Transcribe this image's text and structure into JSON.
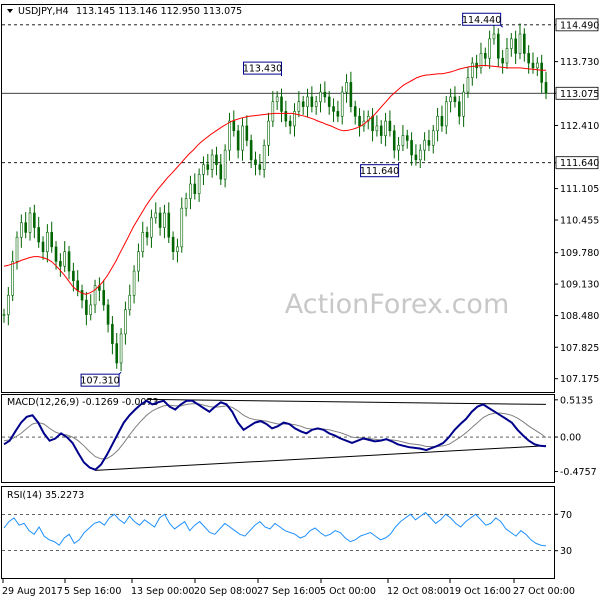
{
  "header": {
    "symbol_label": "USDJPY,H4",
    "ohlc_label": "113.145 113.146 112.950 113.075"
  },
  "watermark": "ActionForex.com",
  "colors": {
    "candle": "#006400",
    "moving_average": "#ff0000",
    "macd_line": "#00008b",
    "signal_line": "#808080",
    "rsi_line": "#1e90ff",
    "trendline": "#000000",
    "panel_border": "#000000",
    "watermark": "#c8c8c8"
  },
  "chart_data": [
    {
      "type": "candlestick",
      "panel": "price",
      "symbol": "USDJPY",
      "timeframe": "H4",
      "ylim": [
        106.9,
        114.9
      ],
      "y_ticks": [
        "114.490",
        "113.730",
        "113.075",
        "112.410",
        "111.640",
        "111.105",
        "110.455",
        "109.780",
        "109.130",
        "108.480",
        "107.825",
        "107.175"
      ],
      "horizontal_levels": [
        {
          "value": 114.49,
          "label": "114.490",
          "style": "dashed"
        },
        {
          "value": 113.075,
          "label": "113.075",
          "style": "solid"
        },
        {
          "value": 111.64,
          "label": "111.640",
          "style": "dashed"
        }
      ],
      "annotations": [
        {
          "label": "107.310",
          "value": 107.31
        },
        {
          "label": "113.430",
          "value": 113.43
        },
        {
          "label": "111.640",
          "value": 111.64
        },
        {
          "label": "114.440",
          "value": 114.44
        }
      ],
      "closes": [
        108.5,
        108.9,
        109.6,
        110.1,
        110.4,
        110.2,
        110.6,
        110.3,
        110.0,
        109.8,
        110.2,
        109.9,
        109.6,
        109.5,
        109.8,
        109.4,
        109.2,
        109.0,
        108.8,
        108.5,
        108.7,
        109.1,
        109.0,
        108.7,
        108.3,
        107.9,
        107.5,
        108.1,
        108.6,
        108.9,
        109.4,
        109.8,
        110.2,
        110.1,
        110.5,
        110.6,
        110.3,
        110.6,
        110.1,
        109.8,
        109.9,
        110.7,
        110.9,
        111.2,
        111.0,
        111.4,
        111.6,
        111.5,
        111.8,
        111.6,
        111.3,
        111.9,
        112.5,
        112.3,
        111.9,
        112.4,
        112.1,
        111.7,
        111.6,
        111.5,
        112.0,
        112.5,
        112.9,
        113.0,
        112.7,
        112.5,
        112.4,
        112.7,
        112.9,
        112.8,
        113.0,
        112.8,
        112.9,
        113.1,
        113.0,
        112.8,
        112.7,
        112.6,
        113.1,
        113.3,
        112.8,
        112.6,
        112.4,
        112.5,
        112.6,
        112.3,
        112.4,
        112.2,
        112.5,
        112.3,
        111.9,
        112.0,
        112.2,
        112.1,
        111.8,
        111.7,
        111.9,
        112.1,
        112.0,
        112.3,
        112.6,
        112.4,
        112.9,
        113.0,
        112.9,
        112.6,
        113.1,
        113.4,
        113.7,
        113.6,
        113.9,
        113.8,
        114.2,
        114.3,
        113.8,
        113.7,
        114.0,
        114.2,
        113.9,
        114.3,
        113.9,
        113.7,
        113.6,
        113.7,
        113.3,
        113.075
      ],
      "moving_average": [
        109.5,
        109.52,
        109.55,
        109.58,
        109.62,
        109.65,
        109.68,
        109.7,
        109.7,
        109.68,
        109.65,
        109.6,
        109.52,
        109.42,
        109.32,
        109.2,
        109.08,
        109.0,
        108.95,
        108.92,
        108.95,
        109.0,
        109.08,
        109.18,
        109.3,
        109.45,
        109.6,
        109.78,
        109.95,
        110.12,
        110.3,
        110.45,
        110.6,
        110.75,
        110.88,
        111.0,
        111.12,
        111.22,
        111.33,
        111.42,
        111.52,
        111.62,
        111.72,
        111.82,
        111.9,
        112.0,
        112.08,
        112.15,
        112.22,
        112.28,
        112.34,
        112.4,
        112.45,
        112.5,
        112.53,
        112.56,
        112.58,
        112.6,
        112.61,
        112.62,
        112.63,
        112.64,
        112.65,
        112.66,
        112.66,
        112.66,
        112.66,
        112.66,
        112.64,
        112.62,
        112.6,
        112.57,
        112.54,
        112.5,
        112.47,
        112.43,
        112.4,
        112.36,
        112.32,
        112.3,
        112.31,
        112.33,
        112.36,
        112.4,
        112.46,
        112.54,
        112.62,
        112.72,
        112.82,
        112.92,
        113.02,
        113.1,
        113.18,
        113.25,
        113.3,
        113.35,
        113.4,
        113.43,
        113.45,
        113.46,
        113.47,
        113.48,
        113.48,
        113.5,
        113.52,
        113.55,
        113.58,
        113.6,
        113.62,
        113.63,
        113.64,
        113.65,
        113.65,
        113.64,
        113.63,
        113.62,
        113.61,
        113.6,
        113.6,
        113.6,
        113.6,
        113.59,
        113.58,
        113.57,
        113.56,
        113.55,
        113.55
      ]
    },
    {
      "type": "line",
      "panel": "macd",
      "title": "MACD(12,26,9) -0.1269 -0.0073",
      "ylim": [
        -0.62,
        0.58
      ],
      "y_ticks": [
        "0.5135",
        "0.00",
        "-0.4757"
      ],
      "series": [
        {
          "name": "MACD",
          "values": [
            -0.1,
            -0.05,
            0.08,
            0.2,
            0.28,
            0.3,
            0.2,
            0.05,
            -0.05,
            -0.02,
            0.05,
            0.0,
            -0.08,
            -0.22,
            -0.35,
            -0.42,
            -0.45,
            -0.38,
            -0.25,
            -0.1,
            0.05,
            0.2,
            0.3,
            0.38,
            0.45,
            0.5,
            0.45,
            0.48,
            0.5,
            0.42,
            0.38,
            0.45,
            0.5,
            0.5,
            0.45,
            0.4,
            0.35,
            0.42,
            0.48,
            0.45,
            0.35,
            0.2,
            0.1,
            0.15,
            0.2,
            0.22,
            0.18,
            0.12,
            0.15,
            0.2,
            0.18,
            0.12,
            0.08,
            0.05,
            0.1,
            0.12,
            0.1,
            0.05,
            0.02,
            -0.02,
            -0.05,
            -0.08,
            -0.05,
            -0.02,
            -0.04,
            -0.06,
            -0.05,
            -0.03,
            -0.06,
            -0.1,
            -0.12,
            -0.14,
            -0.15,
            -0.16,
            -0.18,
            -0.15,
            -0.12,
            -0.08,
            0.0,
            0.1,
            0.18,
            0.25,
            0.35,
            0.42,
            0.45,
            0.4,
            0.35,
            0.3,
            0.25,
            0.2,
            0.1,
            0.02,
            -0.05,
            -0.1,
            -0.12,
            -0.126
          ]
        },
        {
          "name": "Signal",
          "values": [
            -0.05,
            -0.04,
            0.0,
            0.05,
            0.12,
            0.18,
            0.2,
            0.18,
            0.12,
            0.07,
            0.04,
            0.03,
            0.0,
            -0.05,
            -0.12,
            -0.2,
            -0.27,
            -0.3,
            -0.3,
            -0.25,
            -0.18,
            -0.08,
            0.03,
            0.13,
            0.22,
            0.3,
            0.36,
            0.4,
            0.43,
            0.44,
            0.43,
            0.43,
            0.45,
            0.46,
            0.46,
            0.44,
            0.42,
            0.41,
            0.42,
            0.43,
            0.41,
            0.36,
            0.3,
            0.26,
            0.24,
            0.23,
            0.22,
            0.2,
            0.18,
            0.18,
            0.18,
            0.17,
            0.15,
            0.12,
            0.11,
            0.11,
            0.11,
            0.1,
            0.08,
            0.06,
            0.03,
            0.0,
            -0.01,
            -0.01,
            -0.02,
            -0.03,
            -0.04,
            -0.04,
            -0.04,
            -0.05,
            -0.07,
            -0.09,
            -0.1,
            -0.11,
            -0.13,
            -0.13,
            -0.13,
            -0.12,
            -0.1,
            -0.05,
            0.0,
            0.06,
            0.13,
            0.2,
            0.27,
            0.31,
            0.33,
            0.33,
            0.32,
            0.3,
            0.26,
            0.21,
            0.15,
            0.1,
            0.05,
            -0.007
          ]
        }
      ]
    },
    {
      "type": "line",
      "panel": "rsi",
      "title": "RSI(14) 35.2273",
      "ylim": [
        0,
        100
      ],
      "y_ticks": [
        "70",
        "30"
      ],
      "series": [
        {
          "name": "RSI",
          "values": [
            55,
            62,
            66,
            58,
            60,
            52,
            48,
            56,
            46,
            42,
            40,
            36,
            44,
            48,
            38,
            42,
            50,
            55,
            60,
            62,
            58,
            66,
            70,
            64,
            60,
            68,
            62,
            58,
            64,
            60,
            56,
            66,
            70,
            60,
            54,
            58,
            62,
            52,
            58,
            62,
            56,
            50,
            48,
            54,
            60,
            56,
            52,
            48,
            46,
            52,
            58,
            62,
            56,
            54,
            60,
            56,
            52,
            50,
            48,
            44,
            46,
            52,
            55,
            50,
            46,
            48,
            52,
            50,
            44,
            40,
            42,
            46,
            48,
            50,
            46,
            42,
            44,
            48,
            56,
            62,
            66,
            70,
            64,
            68,
            72,
            66,
            60,
            64,
            70,
            66,
            60,
            56,
            62,
            66,
            70,
            64,
            58,
            60,
            66,
            62,
            54,
            50,
            46,
            52,
            48,
            42,
            38,
            36,
            35.2273
          ]
        }
      ]
    }
  ],
  "x_axis_labels": [
    "29 Aug 2017",
    "5 Sep 16:00",
    "13 Sep 00:00",
    "20 Sep 08:00",
    "27 Sep 16:00",
    "5 Oct 00:00",
    "12 Oct 08:00",
    "19 Oct 16:00",
    "27 Oct 00:00"
  ]
}
